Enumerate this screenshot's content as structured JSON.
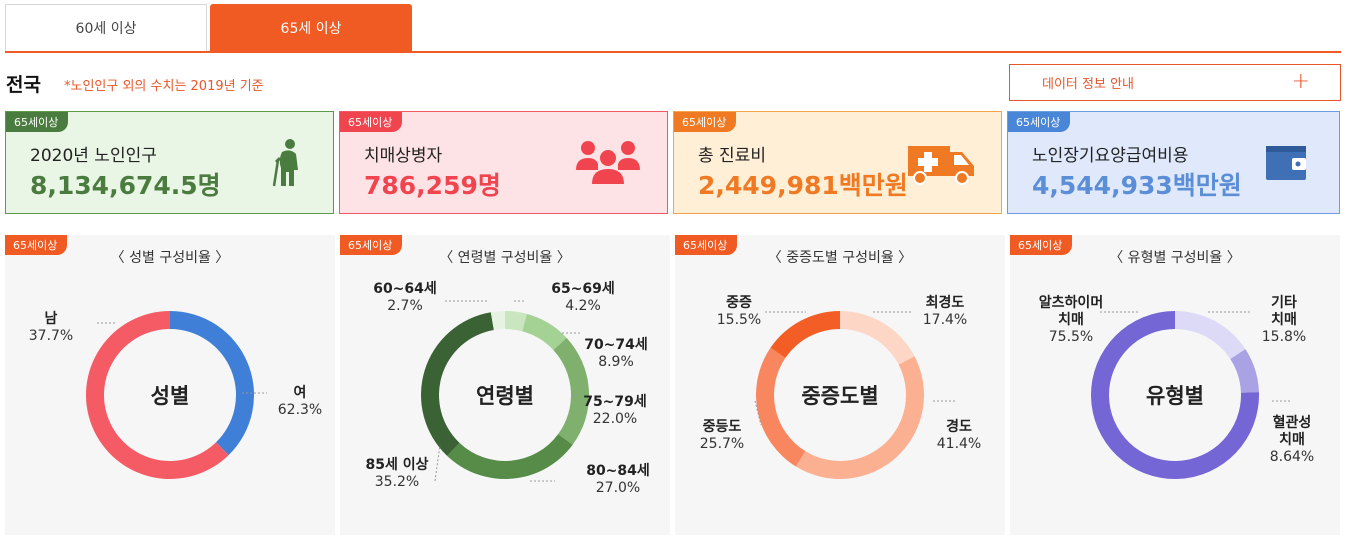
{
  "tabs": [
    {
      "label": "60세 이상",
      "active": false
    },
    {
      "label": "65세 이상",
      "active": true
    }
  ],
  "header": {
    "region": "전국",
    "note": "*노인인구 외의 수치는 2019년 기준",
    "info_button": "데이터 정보 안내",
    "info_button_icon": "plus-icon"
  },
  "cards": [
    {
      "badge": "65세이상",
      "label": "2020년 노인인구",
      "value": "8,134,674.5명",
      "icon": "elderly-person-icon",
      "color": "#4a7c3f",
      "bg": "#e9f5e5",
      "border": "#5a9a4a",
      "badge_bg": "#4a7c3f"
    },
    {
      "badge": "65세이상",
      "label": "치매상병자",
      "value": "786,259명",
      "icon": "people-group-icon",
      "color": "#f0454f",
      "bg": "#fde3e5",
      "border": "#ef5a64",
      "badge_bg": "#f0454f"
    },
    {
      "badge": "65세이상",
      "label": "총 진료비",
      "value": "2,449,981백만원",
      "icon": "ambulance-icon",
      "color": "#f07a23",
      "bg": "#feefd6",
      "border": "#f5a44a",
      "badge_bg": "#f07a23"
    },
    {
      "badge": "65세이상",
      "label": "노인장기요양급여비용",
      "value": "4,544,933백만원",
      "icon": "wallet-icon",
      "color": "#5b8ed6",
      "bg": "#dfe9fb",
      "border": "#6f9ce0",
      "badge_bg": "#4a86d8"
    }
  ],
  "chart_data": [
    {
      "type": "pie",
      "badge": "65세이상",
      "title": "〈 성별 구성비율 〉",
      "center_label": "성별",
      "slices": [
        {
          "name": "남",
          "value": 37.7,
          "label": "37.7%",
          "color": "#3f7fd8"
        },
        {
          "name": "여",
          "value": 62.3,
          "label": "62.3%",
          "color": "#f45b64"
        }
      ]
    },
    {
      "type": "pie",
      "badge": "65세이상",
      "title": "〈 연령별 구성비율 〉",
      "center_label": "연령별",
      "slices": [
        {
          "name": "65~69세",
          "value": 4.2,
          "label": "4.2%",
          "color": "#c9e6c1"
        },
        {
          "name": "70~74세",
          "value": 8.9,
          "label": "8.9%",
          "color": "#a4d294"
        },
        {
          "name": "75~79세",
          "value": 22.0,
          "label": "22.0%",
          "color": "#7fb06e"
        },
        {
          "name": "80~84세",
          "value": 27.0,
          "label": "27.0%",
          "color": "#568c48"
        },
        {
          "name": "85세 이상",
          "value": 35.2,
          "label": "35.2%",
          "color": "#3a6234"
        },
        {
          "name": "60~64세",
          "value": 2.7,
          "label": "2.7%",
          "color": "#e6f3e1"
        }
      ]
    },
    {
      "type": "pie",
      "badge": "65세이상",
      "title": "〈 중증도별 구성비율 〉",
      "center_label": "중증도별",
      "slices": [
        {
          "name": "최경도",
          "value": 17.4,
          "label": "17.4%",
          "color": "#fdd6c6"
        },
        {
          "name": "경도",
          "value": 41.4,
          "label": "41.4%",
          "color": "#fbb092"
        },
        {
          "name": "중등도",
          "value": 25.7,
          "label": "25.7%",
          "color": "#f8865f"
        },
        {
          "name": "중증",
          "value": 15.5,
          "label": "15.5%",
          "color": "#f25e26"
        }
      ]
    },
    {
      "type": "pie",
      "badge": "65세이상",
      "title": "〈 유형별 구성비율 〉",
      "center_label": "유형별",
      "slices": [
        {
          "name": "기타 치매",
          "value": 15.8,
          "label": "15.8%",
          "color": "#dcdaf6"
        },
        {
          "name": "혈관성 치매",
          "value": 8.64,
          "label": "8.64%",
          "color": "#a9a3e6"
        },
        {
          "name": "알츠하이머 치매",
          "value": 75.5,
          "label": "75.5%",
          "color": "#7466d4"
        }
      ]
    }
  ]
}
